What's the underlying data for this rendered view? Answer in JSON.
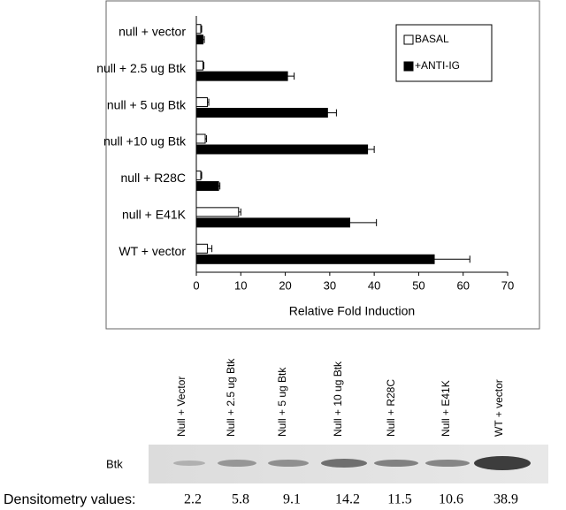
{
  "chart_data": {
    "type": "bar",
    "orientation": "horizontal",
    "xlabel": "Relative Fold Induction",
    "categories": [
      "null + vector",
      "null + 2.5 ug Btk",
      "null + 5 ug Btk",
      "null +10 ug Btk",
      "null + R28C",
      "null + E41K",
      "WT  + vector"
    ],
    "series": [
      {
        "name": "BASAL",
        "color": "#ffffff",
        "values": [
          1,
          1.5,
          2.5,
          2,
          1,
          9.5,
          2.5
        ],
        "errors": [
          0.2,
          0.2,
          0.3,
          0.3,
          0.2,
          0.5,
          1
        ]
      },
      {
        "name": "+ANTI-IG",
        "color": "#000000",
        "values": [
          1.5,
          20.5,
          29.5,
          38.5,
          5,
          34.5,
          53.5
        ],
        "errors": [
          0.3,
          1.5,
          2,
          1.5,
          0.3,
          6,
          8
        ]
      }
    ],
    "xlim": [
      0,
      70
    ],
    "xticks": [
      0,
      10,
      20,
      30,
      40,
      50,
      60,
      70
    ],
    "legend": "upper right"
  },
  "blot": {
    "lanes": [
      "Null + Vector",
      "Null + 2.5 ug Btk",
      "Null + 5 ug Btk",
      "Null + 10 ug Btk",
      "Null + R28C",
      "Null + E41K",
      "WT + vector"
    ],
    "row_label": "Btk",
    "densitometry_label": "Densitometry values:",
    "densitometry": [
      2.2,
      5.8,
      9.1,
      14.2,
      11.5,
      10.6,
      38.9
    ]
  }
}
